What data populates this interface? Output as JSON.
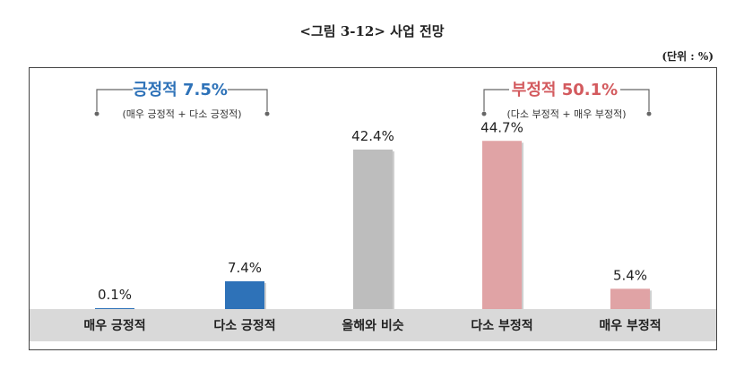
{
  "header": {
    "title": "<그림 3-12> 사업 전망",
    "unit": "(단위 : %)"
  },
  "groups": {
    "positive": {
      "title": "긍정적 7.5%",
      "sub": "(매우 긍정적 + 다소 긍정적)",
      "color": "#2e72b8"
    },
    "negative": {
      "title": "부정적 50.1%",
      "sub": "(다소 부정적 + 매우 부정적)",
      "color": "#d35a5e"
    }
  },
  "chart_data": {
    "type": "bar",
    "title": "<그림 3-12> 사업 전망",
    "categories": [
      "매우 긍정적",
      "다소 긍정적",
      "올해와 비슷",
      "다소 부정적",
      "매우 부정적"
    ],
    "values": [
      0.1,
      7.4,
      42.4,
      44.7,
      5.4
    ],
    "data_labels": [
      "0.1%",
      "7.4%",
      "42.4%",
      "44.7%",
      "5.4%"
    ],
    "colors": [
      "#2e72b8",
      "#2e72b8",
      "#bdbdbd",
      "#e0a3a5",
      "#e0a3a5"
    ],
    "ylim": [
      0,
      50
    ],
    "grid": false
  }
}
